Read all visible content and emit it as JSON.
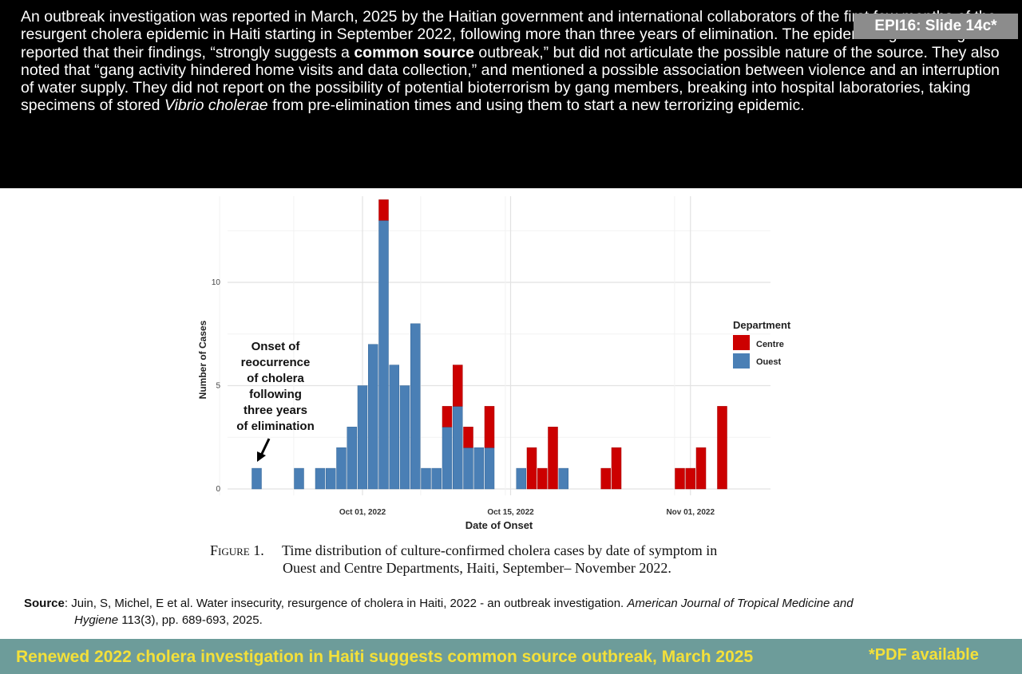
{
  "slide_tag": "EPI16: Slide 14c*",
  "intro": {
    "t1": "An outbreak investigation was reported in March, 2025 by the Haitian government and international collaborators of the first few months of the resurgent cholera epidemic in Haiti starting in September 2022, following more than three years of elimination. The epidemiologic investigators reported that their findings, “strongly suggests a ",
    "bold": "common source",
    "t2": " outbreak,” but did not articulate the possible nature of the source. They also noted that “gang activity hindered home visits and data collection,” and mentioned a possible association between violence and an interruption of water supply. They did not report on the possibility of potential bioterrorism by gang members, breaking into hospital laboratories, taking specimens of stored ",
    "italic": "Vibrio cholerae",
    "t3": " from pre-elimination times and using them to start a new terrorizing epidemic."
  },
  "chart_data": {
    "type": "bar",
    "stacked": true,
    "xlabel": "Date of Onset",
    "ylabel": "Number of Cases",
    "x_ticks": [
      "Oct 01, 2022",
      "Oct 15, 2022",
      "Nov 01, 2022"
    ],
    "y_ticks": [
      "0",
      "5",
      "10"
    ],
    "ylim": [
      0,
      14
    ],
    "legend": {
      "title": "Department",
      "placement": "right"
    },
    "series": [
      {
        "name": "Centre",
        "color": "#cc0000"
      },
      {
        "name": "Ouest",
        "color": "#4a7fb5"
      }
    ],
    "bars": [
      {
        "date": "2022-09-21",
        "ouest": 1,
        "centre": 0
      },
      {
        "date": "2022-09-25",
        "ouest": 1,
        "centre": 0
      },
      {
        "date": "2022-09-27",
        "ouest": 1,
        "centre": 0
      },
      {
        "date": "2022-09-28",
        "ouest": 1,
        "centre": 0
      },
      {
        "date": "2022-09-29",
        "ouest": 2,
        "centre": 0
      },
      {
        "date": "2022-09-30",
        "ouest": 3,
        "centre": 0
      },
      {
        "date": "2022-10-01",
        "ouest": 5,
        "centre": 0
      },
      {
        "date": "2022-10-02",
        "ouest": 7,
        "centre": 0
      },
      {
        "date": "2022-10-03",
        "ouest": 13,
        "centre": 1
      },
      {
        "date": "2022-10-04",
        "ouest": 6,
        "centre": 0
      },
      {
        "date": "2022-10-05",
        "ouest": 5,
        "centre": 0
      },
      {
        "date": "2022-10-06",
        "ouest": 8,
        "centre": 0
      },
      {
        "date": "2022-10-07",
        "ouest": 1,
        "centre": 0
      },
      {
        "date": "2022-10-08",
        "ouest": 1,
        "centre": 0
      },
      {
        "date": "2022-10-09",
        "ouest": 3,
        "centre": 1
      },
      {
        "date": "2022-10-10",
        "ouest": 4,
        "centre": 2
      },
      {
        "date": "2022-10-11",
        "ouest": 2,
        "centre": 1
      },
      {
        "date": "2022-10-12",
        "ouest": 2,
        "centre": 0
      },
      {
        "date": "2022-10-13",
        "ouest": 2,
        "centre": 2
      },
      {
        "date": "2022-10-16",
        "ouest": 1,
        "centre": 0
      },
      {
        "date": "2022-10-17",
        "ouest": 0,
        "centre": 2
      },
      {
        "date": "2022-10-18",
        "ouest": 0,
        "centre": 1
      },
      {
        "date": "2022-10-19",
        "ouest": 0,
        "centre": 3
      },
      {
        "date": "2022-10-20",
        "ouest": 1,
        "centre": 0
      },
      {
        "date": "2022-10-24",
        "ouest": 0,
        "centre": 1
      },
      {
        "date": "2022-10-25",
        "ouest": 0,
        "centre": 2
      },
      {
        "date": "2022-10-31",
        "ouest": 0,
        "centre": 1
      },
      {
        "date": "2022-11-01",
        "ouest": 0,
        "centre": 1
      },
      {
        "date": "2022-11-02",
        "ouest": 0,
        "centre": 2
      },
      {
        "date": "2022-11-04",
        "ouest": 0,
        "centre": 4
      }
    ],
    "annotation": [
      "Onset of",
      "reocurrence",
      "of cholera",
      "following",
      "three years",
      "of elimination"
    ]
  },
  "caption": {
    "figure_label": "Figure 1.",
    "line1": "Time distribution of culture-confirmed cholera cases by date of symptom in",
    "line2": "Ouest and Centre Departments, Haiti, September–  November 2022."
  },
  "source": {
    "label": "Source",
    "text1": ": Juin, S, Michel, E et al. Water insecurity, resurgence of cholera in Haiti, 2022 - an outbreak investigation. ",
    "journal1": "American Journal of Tropical Medicine and",
    "journal2": "Hygiene",
    "text2": " 113(3), pp. 689-693, 2025."
  },
  "footer": {
    "title": "Renewed 2022 cholera investigation in Haiti suggests common source outbreak, March 2025",
    "pdf": "*PDF available"
  }
}
